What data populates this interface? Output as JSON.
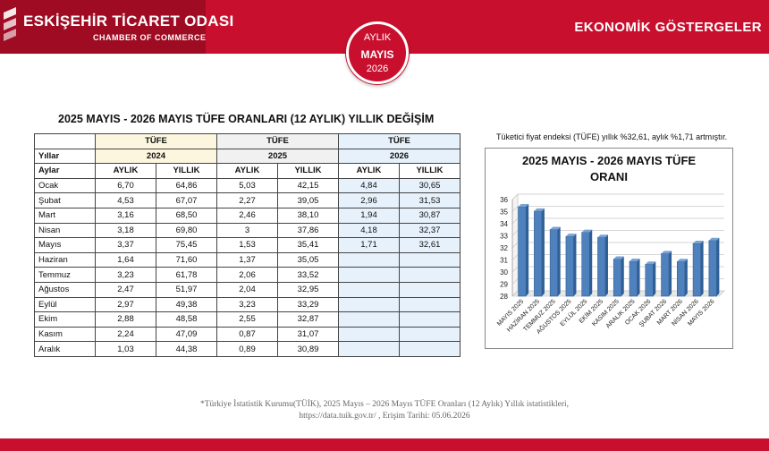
{
  "header": {
    "org_name": "ESKİŞEHİR TİCARET ODASI",
    "org_sub": "CHAMBER OF COMMERCE",
    "title": "EKONOMİK GÖSTERGELER",
    "badge": {
      "line1": "AYLIK",
      "line2": "MAYIS",
      "line3": "2026"
    }
  },
  "table": {
    "title": "2025 MAYIS - 2026 MAYIS TÜFE ORANLARI (12 AYLIK) YILLIK DEĞİŞİM",
    "group_label": "TÜFE",
    "row_years": "Yıllar",
    "row_months": "Aylar",
    "years": [
      "2024",
      "2025",
      "2026"
    ],
    "col_monthly": "AYLIK",
    "col_yearly": "YILLIK",
    "rows": [
      {
        "month": "Ocak",
        "v": [
          "6,70",
          "64,86",
          "5,03",
          "42,15",
          "4,84",
          "30,65"
        ]
      },
      {
        "month": "Şubat",
        "v": [
          "4,53",
          "67,07",
          "2,27",
          "39,05",
          "2,96",
          "31,53"
        ]
      },
      {
        "month": "Mart",
        "v": [
          "3,16",
          "68,50",
          "2,46",
          "38,10",
          "1,94",
          "30,87"
        ]
      },
      {
        "month": "Nisan",
        "v": [
          "3,18",
          "69,80",
          "3",
          "37,86",
          "4,18",
          "32,37"
        ]
      },
      {
        "month": "Mayıs",
        "v": [
          "3,37",
          "75,45",
          "1,53",
          "35,41",
          "1,71",
          "32,61"
        ]
      },
      {
        "month": "Haziran",
        "v": [
          "1,64",
          "71,60",
          "1,37",
          "35,05",
          "",
          ""
        ]
      },
      {
        "month": "Temmuz",
        "v": [
          "3,23",
          "61,78",
          "2,06",
          "33,52",
          "",
          ""
        ]
      },
      {
        "month": "Ağustos",
        "v": [
          "2,47",
          "51,97",
          "2,04",
          "32,95",
          "",
          ""
        ]
      },
      {
        "month": "Eylül",
        "v": [
          "2,97",
          "49,38",
          "3,23",
          "33,29",
          "",
          ""
        ]
      },
      {
        "month": "Ekim",
        "v": [
          "2,88",
          "48,58",
          "2,55",
          "32,87",
          "",
          ""
        ]
      },
      {
        "month": "Kasım",
        "v": [
          "2,24",
          "47,09",
          "0,87",
          "31,07",
          "",
          ""
        ]
      },
      {
        "month": "Aralık",
        "v": [
          "1,03",
          "44,38",
          "0,89",
          "30,89",
          "",
          ""
        ]
      }
    ]
  },
  "note": "Tüketici fiyat endeksi (TÜFE) yıllık %32,61, aylık %1,71 artmıştır.",
  "source_line1": "*Türkiye İstatistik Kurumu(TÜİK), 2025 Mayıs – 2026 Mayıs TÜFE Oranları (12 Aylık) Yıllık istatistikleri,",
  "source_line2": "https://data.tuik.gov.tr/ , Erişim Tarihi: 05.06.2026",
  "chart_data": {
    "type": "bar",
    "title_line1": "2025 MAYIS - 2026 MAYIS TÜFE",
    "title_line2": "ORANI",
    "categories": [
      "MAYIS 2025",
      "HAZİRAN 2025",
      "TEMMUZ 2025",
      "AĞUSTOS 2025",
      "EYLÜL 2025",
      "EKİM 2025",
      "KASIM 2025",
      "ARALIK 2025",
      "OCAK 2026",
      "ŞUBAT 2026",
      "MART 2026",
      "NİSAN 2026",
      "MAYIS 2026"
    ],
    "values": [
      35.41,
      35.05,
      33.52,
      32.95,
      33.29,
      32.87,
      31.07,
      30.89,
      30.65,
      31.53,
      30.87,
      32.37,
      32.61
    ],
    "ylim": [
      28,
      36
    ],
    "yticks": [
      28,
      29,
      30,
      31,
      32,
      33,
      34,
      35,
      36
    ],
    "grid": true,
    "colors": {
      "bar": "#4f81bd",
      "bar_dark": "#2f5f96",
      "grid": "#c8c8c8"
    }
  },
  "colors": {
    "brand_red": "#c8102e",
    "brand_dark": "#9e0b22"
  }
}
